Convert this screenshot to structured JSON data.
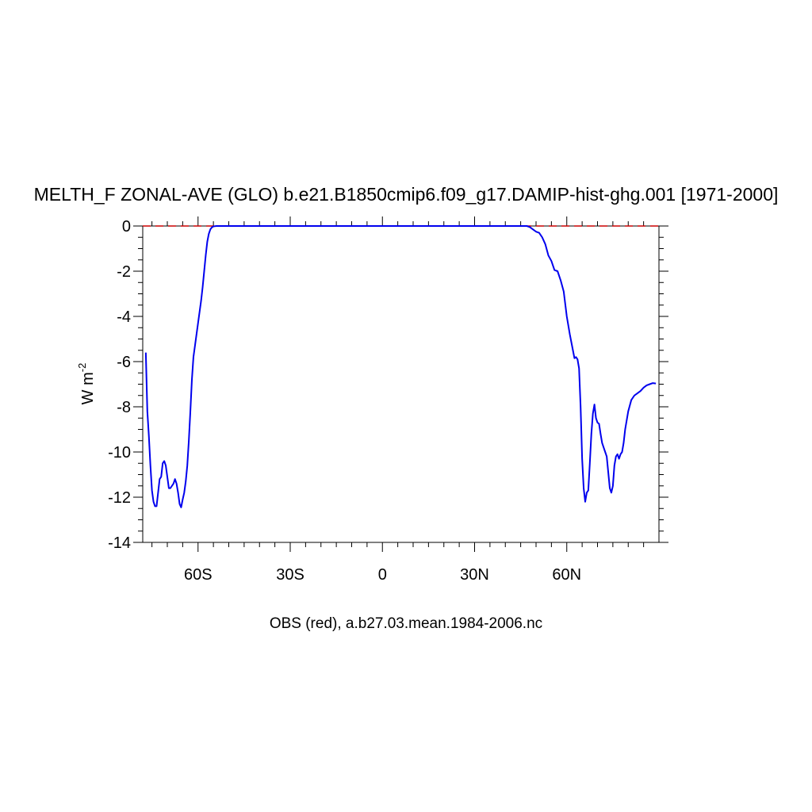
{
  "chart_data": {
    "type": "line",
    "title": "MELTH_F ZONAL-AVE (GLO) b.e21.B1850cmip6.f09_g17.DAMIP-hist-ghg.001 [1971-2000]",
    "ylabel": "W m",
    "ylabel_sup": "-2",
    "caption": "OBS (red), a.b27.03.mean.1984-2006.nc",
    "xlim": [
      -78,
      90
    ],
    "ylim": [
      -14,
      0
    ],
    "x_ticks": [
      {
        "value": -60,
        "label": "60S"
      },
      {
        "value": -30,
        "label": "30S"
      },
      {
        "value": 0,
        "label": "0"
      },
      {
        "value": 30,
        "label": "30N"
      },
      {
        "value": 60,
        "label": "60N"
      }
    ],
    "y_ticks": [
      {
        "value": 0,
        "label": "0"
      },
      {
        "value": -2,
        "label": "-2"
      },
      {
        "value": -4,
        "label": "-4"
      },
      {
        "value": -6,
        "label": "-6"
      },
      {
        "value": -8,
        "label": "-8"
      },
      {
        "value": -10,
        "label": "-10"
      },
      {
        "value": -12,
        "label": "-12"
      },
      {
        "value": -14,
        "label": "-14"
      }
    ],
    "series": [
      {
        "color": "#0000ee",
        "dash": "solid",
        "x": [
          -77,
          -76.5,
          -76,
          -75.5,
          -75,
          -74.5,
          -74,
          -73.5,
          -73,
          -72.5,
          -72,
          -71.5,
          -71,
          -70.5,
          -70,
          -69.5,
          -69,
          -68.5,
          -68,
          -67.5,
          -67,
          -66.5,
          -66,
          -65.5,
          -65,
          -64.5,
          -64,
          -63.5,
          -63,
          -62.5,
          -62,
          -61.5,
          -61,
          -60.5,
          -60,
          -59.5,
          -59,
          -58.5,
          -58,
          -57.5,
          -57,
          -56.5,
          -56,
          -55.5,
          -55,
          -54.5,
          -54,
          -53,
          -52,
          -50,
          -40,
          -30,
          -20,
          -10,
          0,
          10,
          20,
          30,
          40,
          45,
          47,
          48,
          49,
          50,
          51,
          52,
          53,
          54,
          55,
          56,
          57,
          58,
          59,
          60,
          61,
          62,
          62.5,
          63,
          63.5,
          64,
          64.5,
          65,
          65.5,
          66,
          66.5,
          67,
          67.5,
          68,
          68.5,
          69,
          69.5,
          70,
          70.5,
          71,
          71.5,
          72,
          72.5,
          73,
          73.5,
          74,
          74.5,
          75,
          75.5,
          76,
          76.5,
          77,
          77.5,
          78,
          78.5,
          79,
          80,
          81,
          82,
          83,
          84,
          85,
          86,
          87,
          88,
          89
        ],
        "y": [
          -5.6,
          -8.2,
          -9.3,
          -10.6,
          -11.7,
          -12.2,
          -12.4,
          -12.4,
          -11.8,
          -11.2,
          -11.1,
          -10.5,
          -10.4,
          -10.6,
          -11.1,
          -11.6,
          -11.6,
          -11.5,
          -11.4,
          -11.2,
          -11.4,
          -11.8,
          -12.3,
          -12.45,
          -12.1,
          -11.8,
          -11.3,
          -10.6,
          -9.5,
          -8.2,
          -6.8,
          -5.8,
          -5.3,
          -4.8,
          -4.3,
          -3.8,
          -3.3,
          -2.7,
          -2.0,
          -1.3,
          -0.7,
          -0.35,
          -0.15,
          -0.06,
          -0.02,
          -0.01,
          0,
          0,
          0,
          0,
          0,
          0,
          0,
          0,
          0,
          0,
          0,
          0,
          0,
          0,
          0,
          -0.05,
          -0.15,
          -0.25,
          -0.3,
          -0.5,
          -0.8,
          -1.3,
          -1.55,
          -1.95,
          -2.0,
          -2.4,
          -2.9,
          -4.0,
          -4.8,
          -5.5,
          -5.85,
          -5.8,
          -5.9,
          -6.3,
          -8.0,
          -10.3,
          -11.6,
          -12.2,
          -11.8,
          -11.7,
          -10.5,
          -9.2,
          -8.3,
          -7.9,
          -8.5,
          -8.7,
          -8.75,
          -9.2,
          -9.6,
          -9.8,
          -10.0,
          -10.2,
          -10.9,
          -11.6,
          -11.8,
          -11.5,
          -10.6,
          -10.2,
          -10.1,
          -10.3,
          -10.1,
          -10.0,
          -9.6,
          -9.0,
          -8.2,
          -7.7,
          -7.5,
          -7.4,
          -7.3,
          -7.15,
          -7.05,
          -7.0,
          -6.95,
          -6.97
        ],
        "width": 2
      },
      {
        "color": "#cc0000",
        "dash": "dash",
        "x": [
          -78,
          90
        ],
        "y": [
          0,
          0
        ],
        "width": 1.5
      },
      {
        "color": "#000000",
        "dash": "solid",
        "x": [
          -78,
          90
        ],
        "y": [
          0,
          0
        ],
        "width": 1
      }
    ]
  }
}
